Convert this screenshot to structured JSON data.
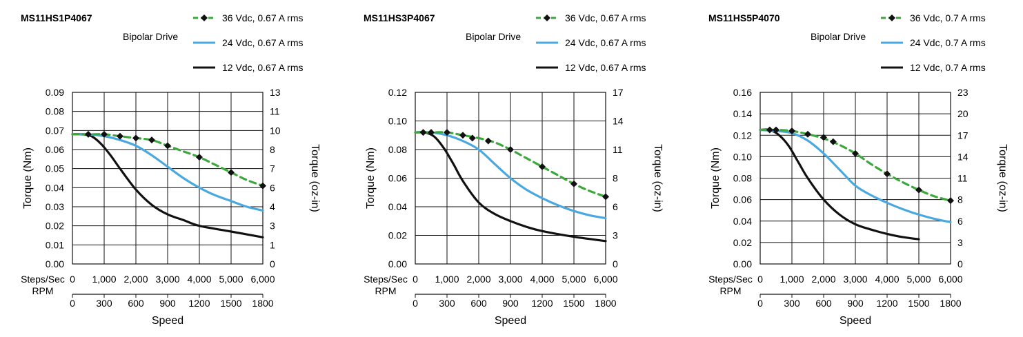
{
  "chart_data": [
    {
      "type": "line",
      "title": "MS11HS1P4067",
      "subtitle": "Bipolar Drive",
      "ylabel": "Torque (Nm)",
      "y2label": "Torque (oz-in)",
      "xlabel": "Speed",
      "x_row1_label": "Steps/Sec",
      "x_row2_label": "RPM",
      "xlim": [
        0,
        6000
      ],
      "ylim": [
        0,
        0.09
      ],
      "x_ticks": [
        "0",
        "1,000",
        "2,000",
        "3,000",
        "4,000",
        "5,000",
        "6,000"
      ],
      "rpm_ticks": [
        "0",
        "300",
        "600",
        "900",
        "1200",
        "1500",
        "1800"
      ],
      "y_ticks": [
        "0.00",
        "0.01",
        "0.02",
        "0.03",
        "0.04",
        "0.05",
        "0.06",
        "0.07",
        "0.08",
        "0.09"
      ],
      "y_tick_values": [
        0,
        0.01,
        0.02,
        0.03,
        0.04,
        0.05,
        0.06,
        0.07,
        0.08,
        0.09
      ],
      "y2_ticks": [
        "0",
        "1",
        "3",
        "4",
        "6",
        "7",
        "8",
        "10",
        "11",
        "13"
      ],
      "grid": true,
      "legend_position": "top-right",
      "series": [
        {
          "name": "36 Vdc, 0.67 A rms",
          "color": "#3aa83a",
          "style": "dashed-diamond",
          "x": [
            0,
            500,
            1000,
            1500,
            2000,
            2500,
            3000,
            3500,
            4000,
            4500,
            5000,
            5500,
            6000
          ],
          "y": [
            0.068,
            0.068,
            0.068,
            0.067,
            0.066,
            0.065,
            0.062,
            0.059,
            0.056,
            0.052,
            0.048,
            0.044,
            0.041
          ],
          "markers_x": [
            500,
            1000,
            1500,
            2000,
            2500,
            3000,
            4000,
            5000,
            6000
          ],
          "markers_y": [
            0.068,
            0.068,
            0.067,
            0.066,
            0.065,
            0.062,
            0.056,
            0.048,
            0.041
          ]
        },
        {
          "name": "24 Vdc, 0.67 A rms",
          "color": "#4aa8e0",
          "style": "solid",
          "x": [
            0,
            500,
            1000,
            1500,
            2000,
            2500,
            3000,
            3500,
            4000,
            4500,
            5000,
            5500,
            6000
          ],
          "y": [
            0.068,
            0.068,
            0.067,
            0.065,
            0.062,
            0.057,
            0.051,
            0.045,
            0.04,
            0.036,
            0.033,
            0.03,
            0.028
          ]
        },
        {
          "name": "12 Vdc, 0.67 A rms",
          "color": "#111111",
          "style": "solid",
          "x": [
            0,
            300,
            600,
            900,
            1200,
            1500,
            2000,
            2500,
            3000,
            3500,
            4000,
            5000,
            6000
          ],
          "y": [
            0.068,
            0.068,
            0.067,
            0.063,
            0.057,
            0.05,
            0.039,
            0.031,
            0.026,
            0.023,
            0.02,
            0.017,
            0.014
          ]
        }
      ]
    },
    {
      "type": "line",
      "title": "MS11HS3P4067",
      "subtitle": "Bipolar Drive",
      "ylabel": "Torque (Nm)",
      "y2label": "Torque (oz-in)",
      "xlabel": "Speed",
      "x_row1_label": "Steps/Sec",
      "x_row2_label": "RPM",
      "xlim": [
        0,
        6000
      ],
      "ylim": [
        0,
        0.12
      ],
      "x_ticks": [
        "0",
        "1,000",
        "2,000",
        "3,000",
        "4,000",
        "5,000",
        "6,000"
      ],
      "rpm_ticks": [
        "0",
        "300",
        "600",
        "900",
        "1200",
        "1500",
        "1800"
      ],
      "y_ticks": [
        "0.00",
        "0.02",
        "0.04",
        "0.06",
        "0.08",
        "0.10",
        "0.12"
      ],
      "y_tick_values": [
        0,
        0.02,
        0.04,
        0.06,
        0.08,
        0.1,
        0.12
      ],
      "y2_ticks": [
        "0",
        "3",
        "6",
        "8",
        "11",
        "14",
        "17"
      ],
      "grid": true,
      "legend_position": "top-right",
      "series": [
        {
          "name": "36 Vdc, 0.67 A rms",
          "color": "#3aa83a",
          "style": "dashed-diamond",
          "x": [
            0,
            500,
            1000,
            1500,
            2000,
            2500,
            3000,
            3500,
            4000,
            4500,
            5000,
            5500,
            6000
          ],
          "y": [
            0.092,
            0.092,
            0.092,
            0.09,
            0.088,
            0.085,
            0.08,
            0.074,
            0.068,
            0.062,
            0.056,
            0.051,
            0.047
          ],
          "markers_x": [
            250,
            500,
            1000,
            1500,
            1800,
            2300,
            3000,
            4000,
            5000,
            6000
          ],
          "markers_y": [
            0.092,
            0.092,
            0.092,
            0.09,
            0.088,
            0.086,
            0.08,
            0.068,
            0.056,
            0.047
          ]
        },
        {
          "name": "24 Vdc, 0.67 A rms",
          "color": "#4aa8e0",
          "style": "solid",
          "x": [
            0,
            500,
            1000,
            1500,
            2000,
            2500,
            3000,
            3500,
            4000,
            4500,
            5000,
            5500,
            6000
          ],
          "y": [
            0.092,
            0.092,
            0.09,
            0.086,
            0.08,
            0.07,
            0.06,
            0.052,
            0.046,
            0.041,
            0.037,
            0.034,
            0.032
          ]
        },
        {
          "name": "12 Vdc, 0.67 A rms",
          "color": "#111111",
          "style": "solid",
          "x": [
            0,
            300,
            600,
            900,
            1200,
            1500,
            2000,
            2500,
            3000,
            3500,
            4000,
            5000,
            6000
          ],
          "y": [
            0.092,
            0.092,
            0.089,
            0.081,
            0.07,
            0.058,
            0.043,
            0.035,
            0.03,
            0.026,
            0.023,
            0.019,
            0.016
          ]
        }
      ]
    },
    {
      "type": "line",
      "title": "MS11HS5P4070",
      "subtitle": "Bipolar Drive",
      "ylabel": "Torque (Nm)",
      "y2label": "Torque (oz-in)",
      "xlabel": "Speed",
      "x_row1_label": "Steps/Sec",
      "x_row2_label": "RPM",
      "xlim": [
        0,
        6000
      ],
      "ylim": [
        0,
        0.16
      ],
      "x_ticks": [
        "0",
        "1,000",
        "2,000",
        "3,000",
        "4,000",
        "5,000",
        "6,000"
      ],
      "rpm_ticks": [
        "0",
        "300",
        "600",
        "900",
        "1200",
        "1500",
        "1800"
      ],
      "y_ticks": [
        "0.00",
        "0.02",
        "0.04",
        "0.06",
        "0.08",
        "0.10",
        "0.12",
        "0.14",
        "0.16"
      ],
      "y_tick_values": [
        0,
        0.02,
        0.04,
        0.06,
        0.08,
        0.1,
        0.12,
        0.14,
        0.16
      ],
      "y2_ticks": [
        "0",
        "3",
        "6",
        "8",
        "11",
        "14",
        "17",
        "20",
        "23"
      ],
      "grid": true,
      "legend_position": "top-right",
      "series": [
        {
          "name": "36 Vdc, 0.7 A rms",
          "color": "#3aa83a",
          "style": "dashed-diamond",
          "x": [
            0,
            500,
            1000,
            1500,
            2000,
            2500,
            3000,
            3500,
            4000,
            4500,
            5000,
            5500,
            6000
          ],
          "y": [
            0.125,
            0.125,
            0.124,
            0.121,
            0.117,
            0.111,
            0.103,
            0.093,
            0.084,
            0.076,
            0.069,
            0.063,
            0.059
          ],
          "markers_x": [
            300,
            500,
            1000,
            1500,
            2000,
            2300,
            3000,
            4000,
            5000,
            6000
          ],
          "markers_y": [
            0.125,
            0.125,
            0.124,
            0.121,
            0.118,
            0.114,
            0.103,
            0.084,
            0.069,
            0.059
          ]
        },
        {
          "name": "24 Vdc, 0.7 A rms",
          "color": "#4aa8e0",
          "style": "solid",
          "x": [
            0,
            500,
            1000,
            1500,
            2000,
            2500,
            3000,
            3500,
            4000,
            4500,
            5000,
            5500,
            6000
          ],
          "y": [
            0.125,
            0.124,
            0.122,
            0.115,
            0.103,
            0.088,
            0.073,
            0.064,
            0.057,
            0.051,
            0.046,
            0.042,
            0.039
          ]
        },
        {
          "name": "12 Vdc, 0.7 A rms",
          "color": "#111111",
          "style": "solid",
          "x": [
            0,
            300,
            600,
            900,
            1200,
            1500,
            2000,
            2500,
            3000,
            3500,
            4000,
            4500,
            5000
          ],
          "y": [
            0.125,
            0.125,
            0.12,
            0.11,
            0.095,
            0.08,
            0.06,
            0.046,
            0.037,
            0.032,
            0.028,
            0.025,
            0.023
          ]
        }
      ]
    }
  ]
}
